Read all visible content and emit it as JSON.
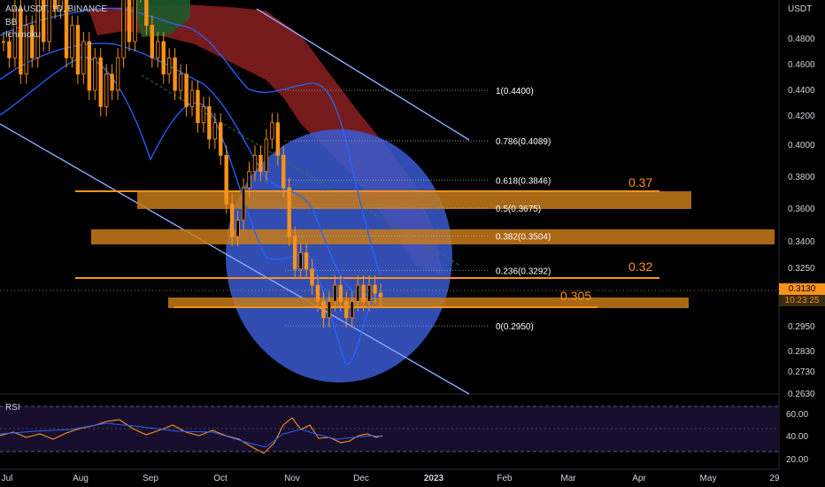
{
  "header": {
    "symbol": "ADAUSDT, 1D, BINANCE",
    "indicator_bb": "BB",
    "indicator_ichimoku": "Ichimoku"
  },
  "axis": {
    "currency": "USDT",
    "price_ticks": [
      "0.4800",
      "0.4600",
      "0.4400",
      "0.4200",
      "0.4000",
      "0.3800",
      "0.3600",
      "0.3400",
      "0.3250",
      "0.2950",
      "0.2830",
      "0.2730",
      "0.2630"
    ],
    "time_ticks": [
      "Jul",
      "Aug",
      "Sep",
      "Oct",
      "Nov",
      "Dec",
      "2023",
      "Feb",
      "Mar",
      "Apr",
      "May",
      "29"
    ]
  },
  "last_price": {
    "value": "0.3130",
    "countdown": "10:23:25",
    "color": "#f7931a"
  },
  "fibonacci": [
    {
      "label": "1(0.4400)",
      "price": 0.44
    },
    {
      "label": "0.786(0.4089)",
      "price": 0.4089
    },
    {
      "label": "0.618(0.3846)",
      "price": 0.3846
    },
    {
      "label": "0.5(0.3675)",
      "price": 0.3675
    },
    {
      "label": "0.382(0.3504)",
      "price": 0.3504
    },
    {
      "label": "0.236(0.3292)",
      "price": 0.3292
    },
    {
      "label": "0(0.2950)",
      "price": 0.295
    }
  ],
  "levels": [
    {
      "label": "0.37",
      "price": 0.37
    },
    {
      "label": "0.32",
      "price": 0.32
    },
    {
      "label": "0.305",
      "price": 0.305
    }
  ],
  "rsi": {
    "title": "RSI",
    "ticks": [
      "60.00",
      "40.00",
      "20.00"
    ]
  },
  "colors": {
    "candle": "#f7931a",
    "bb": "#2962ff",
    "zone": "#c77a1a",
    "channel": "#8fa8ff",
    "circle": "#3a5ad0",
    "cloud_red": "#8b2020",
    "cloud_green": "#1f5a2a"
  },
  "chart_data": {
    "type": "line",
    "series": [
      {
        "values": [
          0.47,
          0.46,
          0.49,
          0.45,
          0.48,
          0.46,
          0.5,
          0.47,
          0.51,
          0.49,
          0.5,
          0.46,
          0.48,
          0.45,
          0.47,
          0.44,
          0.46,
          0.43,
          0.45,
          0.44,
          0.46,
          0.5,
          0.47,
          0.52,
          0.5,
          0.48,
          0.46,
          0.47,
          0.45,
          0.46,
          0.44,
          0.45,
          0.43,
          0.44,
          0.42,
          0.43,
          0.41,
          0.42,
          0.4,
          0.37,
          0.35,
          0.36,
          0.38,
          0.39,
          0.4,
          0.39,
          0.41,
          0.42,
          0.4,
          0.38,
          0.35,
          0.33,
          0.34,
          0.33,
          0.32,
          0.31,
          0.3,
          0.31,
          0.32,
          0.31,
          0.3,
          0.31,
          0.32,
          0.31,
          0.32,
          0.315,
          0.313
        ]
      }
    ],
    "ylim": [
      0.26,
      0.5
    ]
  }
}
